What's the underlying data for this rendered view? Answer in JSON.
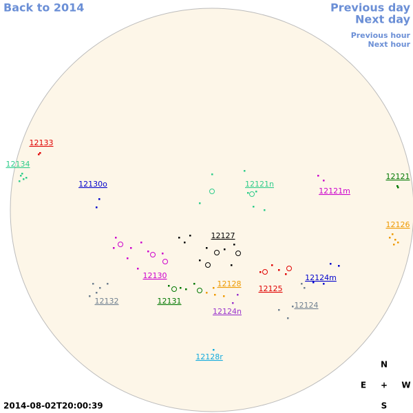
{
  "nav": {
    "back": "Back to 2014",
    "previous_day": "Previous day",
    "next_day": "Next day",
    "previous_hour": "Previous hour",
    "next_hour": "Next hour"
  },
  "timestamp": "2014-08-02T20:00:39",
  "compass": {
    "north": "N",
    "east": "E",
    "center": "+",
    "west": "W",
    "south": "S"
  },
  "regions": [
    {
      "label": "12133",
      "color": "#e00000"
    },
    {
      "label": "12134",
      "color": "#2ecc8a"
    },
    {
      "label": "12130o",
      "color": "#0000cc"
    },
    {
      "label": "12121n",
      "color": "#2ecc8a"
    },
    {
      "label": "12121m",
      "color": "#cc00cc"
    },
    {
      "label": "12121",
      "color": "#007700"
    },
    {
      "label": "12126",
      "color": "#ee9900"
    },
    {
      "label": "12127",
      "color": "#000000"
    },
    {
      "label": "12130",
      "color": "#cc00cc"
    },
    {
      "label": "12128",
      "color": "#ee9900"
    },
    {
      "label": "12124m",
      "color": "#0000cc"
    },
    {
      "label": "12125",
      "color": "#e00000"
    },
    {
      "label": "12132",
      "color": "#708090"
    },
    {
      "label": "12131",
      "color": "#007700"
    },
    {
      "label": "12124",
      "color": "#708090"
    },
    {
      "label": "12124n",
      "color": "#9933cc"
    },
    {
      "label": "12128r",
      "color": "#11aadd"
    }
  ]
}
